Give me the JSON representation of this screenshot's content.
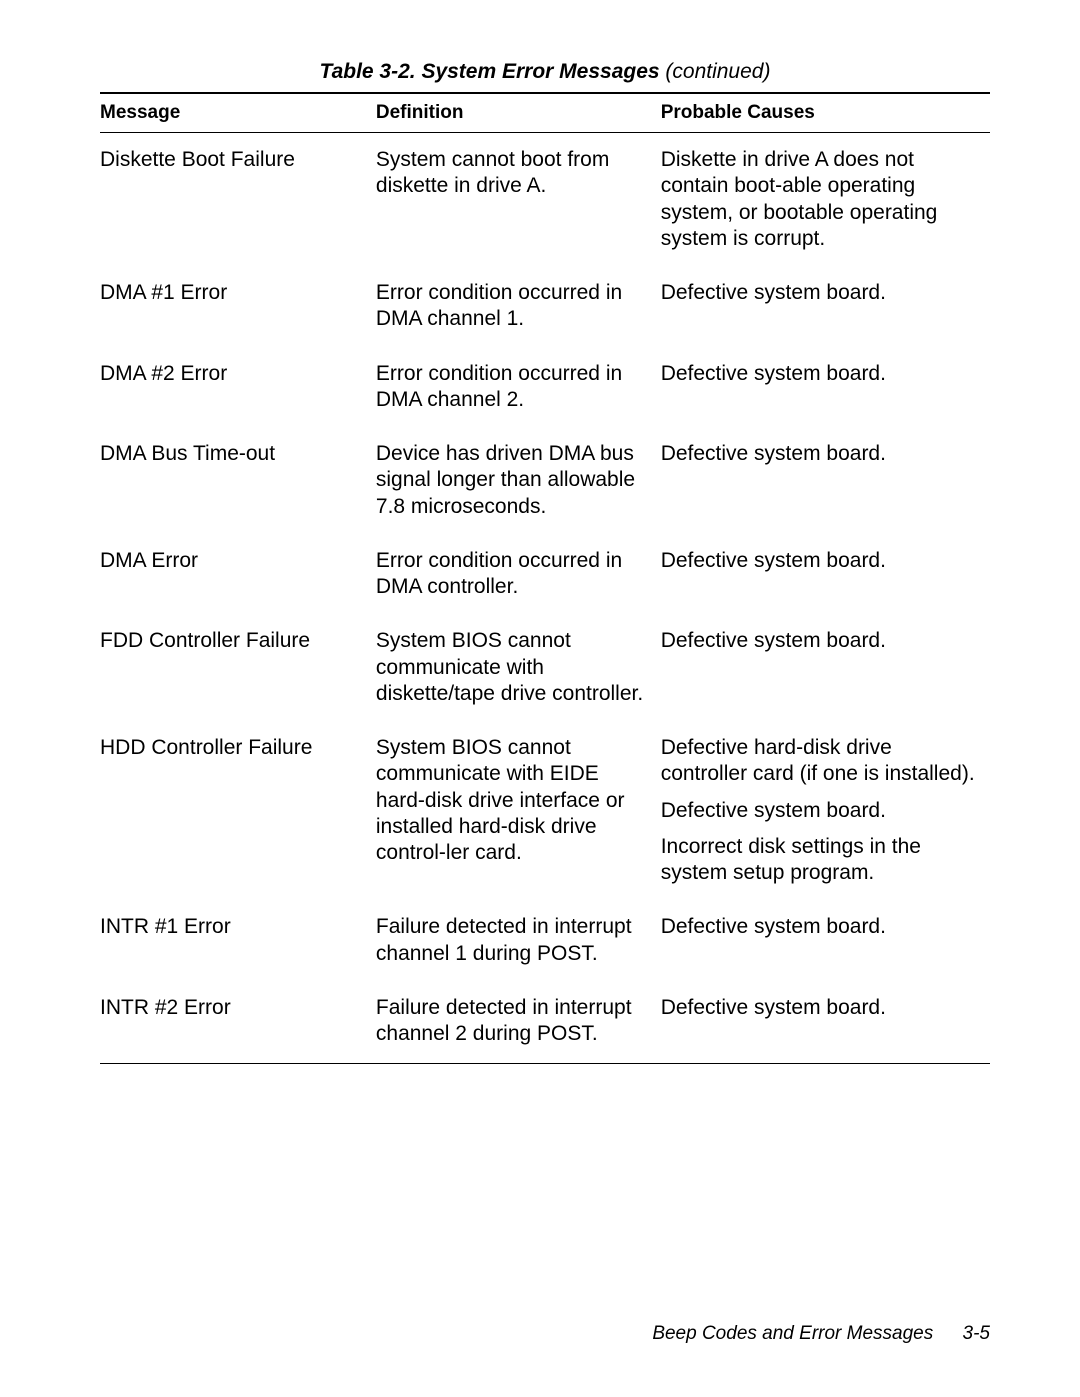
{
  "caption": {
    "title": "Table 3-2.  System Error Messages ",
    "continued": "(continued)"
  },
  "headers": {
    "message": "Message",
    "definition": "Definition",
    "causes": "Probable Causes"
  },
  "rows": [
    {
      "message": "Diskette Boot Failure",
      "definition": "System cannot boot from diskette in drive A.",
      "causes": [
        "Diskette in drive A does not contain boot-able operating system, or bootable operating system is corrupt."
      ]
    },
    {
      "message": "DMA #1 Error",
      "definition": "Error condition occurred in DMA channel 1.",
      "causes": [
        "Defective system board."
      ]
    },
    {
      "message": "DMA #2 Error",
      "definition": "Error condition occurred in DMA channel 2.",
      "causes": [
        "Defective system board."
      ]
    },
    {
      "message": "DMA Bus Time-out",
      "definition": "Device has driven DMA bus signal longer than allowable 7.8 microseconds.",
      "causes": [
        "Defective system board."
      ]
    },
    {
      "message": "DMA Error",
      "definition": "Error condition occurred in DMA controller.",
      "causes": [
        "Defective system board."
      ]
    },
    {
      "message": "FDD Controller Failure",
      "definition": "System BIOS cannot communicate with diskette/tape drive controller.",
      "causes": [
        "Defective system board."
      ]
    },
    {
      "message": "HDD Controller Failure",
      "definition": "System BIOS cannot communicate with EIDE hard-disk drive interface or installed hard-disk drive control-ler card.",
      "causes": [
        "Defective hard-disk drive controller card (if one is installed).",
        "Defective system board.",
        "Incorrect disk settings in the system setup program."
      ]
    },
    {
      "message": "INTR #1 Error",
      "definition": "Failure detected in interrupt channel 1 during POST.",
      "causes": [
        "Defective system board."
      ]
    },
    {
      "message": "INTR #2 Error",
      "definition": "Failure detected in interrupt channel 2 during POST.",
      "causes": [
        "Defective system board."
      ]
    }
  ],
  "footer": {
    "section": "Beep Codes and Error Messages",
    "page": "3-5"
  }
}
